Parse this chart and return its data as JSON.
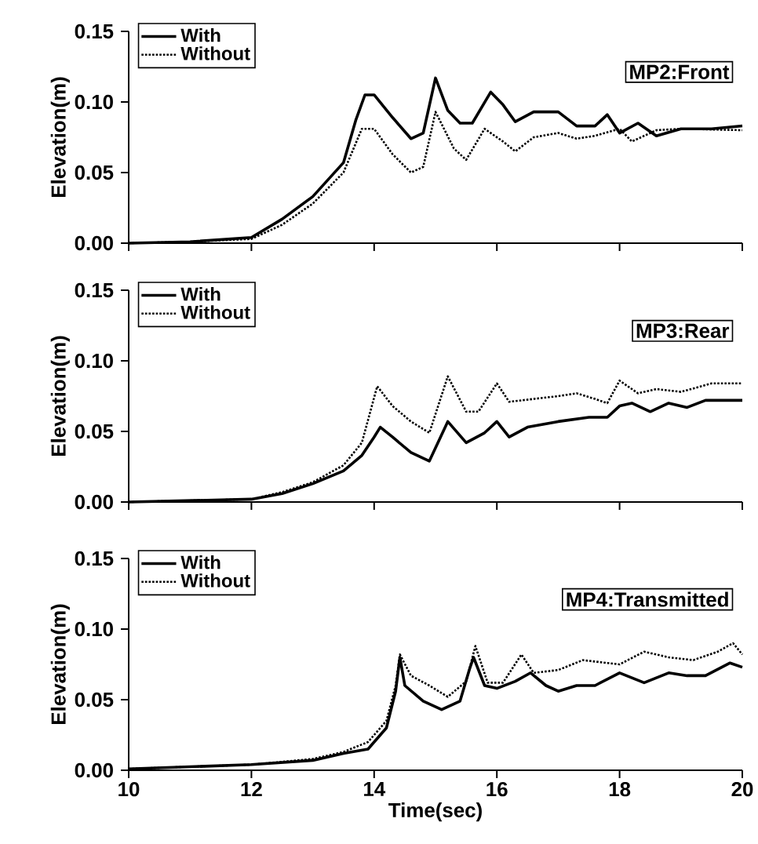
{
  "chart_data": [
    {
      "type": "line",
      "ylabel": "Elevation(m)",
      "annotations": [
        "MP2:Front"
      ],
      "legend": "top left",
      "tick_labels": "y",
      "xlim": [
        10,
        20
      ],
      "xticks": [
        10,
        12,
        14,
        16,
        18,
        20
      ],
      "ylim": [
        0,
        0.15
      ],
      "yticks": [
        {
          "value": 0,
          "label": "0.00"
        },
        {
          "value": 0.05,
          "label": "0.05"
        },
        {
          "value": 0.1,
          "label": "0.10"
        },
        {
          "value": 0.15,
          "label": "0.15"
        }
      ],
      "series": [
        {
          "name": "With",
          "color": "#000000",
          "line_style": "solid",
          "x": [
            10,
            11,
            12,
            12.5,
            13,
            13.5,
            13.7,
            13.85,
            14.0,
            14.3,
            14.6,
            14.8,
            15.0,
            15.2,
            15.4,
            15.6,
            15.9,
            16.1,
            16.3,
            16.6,
            17.0,
            17.3,
            17.6,
            17.8,
            18.0,
            18.3,
            18.6,
            19.0,
            19.5,
            20
          ],
          "values": [
            0,
            0.001,
            0.004,
            0.017,
            0.033,
            0.057,
            0.087,
            0.105,
            0.105,
            0.089,
            0.074,
            0.078,
            0.117,
            0.094,
            0.085,
            0.085,
            0.107,
            0.098,
            0.086,
            0.093,
            0.093,
            0.083,
            0.083,
            0.091,
            0.078,
            0.085,
            0.076,
            0.081,
            0.081,
            0.083
          ]
        },
        {
          "name": "Without",
          "color": "#000000",
          "line_style": "dotted",
          "x": [
            10,
            11,
            12,
            12.5,
            13,
            13.5,
            13.8,
            14.0,
            14.3,
            14.6,
            14.8,
            15.0,
            15.3,
            15.5,
            15.8,
            16.1,
            16.3,
            16.6,
            17.0,
            17.3,
            17.6,
            18.0,
            18.2,
            18.6,
            19.0,
            20
          ],
          "values": [
            0,
            0.001,
            0.003,
            0.013,
            0.028,
            0.05,
            0.081,
            0.081,
            0.063,
            0.05,
            0.054,
            0.093,
            0.067,
            0.059,
            0.081,
            0.072,
            0.065,
            0.075,
            0.078,
            0.074,
            0.076,
            0.081,
            0.072,
            0.08,
            0.081,
            0.08
          ]
        }
      ]
    },
    {
      "type": "line",
      "ylabel": "Elevation(m)",
      "annotations": [
        "MP3:Rear"
      ],
      "legend": "top left",
      "tick_labels": "y",
      "xlim": [
        10,
        20
      ],
      "xticks": [
        10,
        12,
        14,
        16,
        18,
        20
      ],
      "ylim": [
        0,
        0.15
      ],
      "yticks": [
        {
          "value": 0,
          "label": "0.00"
        },
        {
          "value": 0.05,
          "label": "0.05"
        },
        {
          "value": 0.1,
          "label": "0.10"
        },
        {
          "value": 0.15,
          "label": "0.15"
        }
      ],
      "series": [
        {
          "name": "With",
          "color": "#000000",
          "line_style": "solid",
          "x": [
            10,
            11,
            12,
            12.5,
            13,
            13.5,
            13.8,
            14.0,
            14.1,
            14.3,
            14.6,
            14.9,
            15.2,
            15.5,
            15.8,
            16.0,
            16.2,
            16.5,
            17.0,
            17.5,
            17.8,
            18.0,
            18.2,
            18.5,
            18.8,
            19.1,
            19.4,
            20
          ],
          "values": [
            0,
            0.001,
            0.002,
            0.006,
            0.013,
            0.022,
            0.033,
            0.046,
            0.053,
            0.046,
            0.035,
            0.029,
            0.057,
            0.042,
            0.049,
            0.057,
            0.046,
            0.053,
            0.057,
            0.06,
            0.06,
            0.068,
            0.07,
            0.064,
            0.07,
            0.067,
            0.072,
            0.072
          ]
        },
        {
          "name": "Without",
          "color": "#000000",
          "line_style": "dotted",
          "x": [
            10,
            11,
            12,
            12.5,
            13,
            13.5,
            13.8,
            14.05,
            14.3,
            14.6,
            14.9,
            15.2,
            15.5,
            15.7,
            16.0,
            16.2,
            16.6,
            17.0,
            17.3,
            17.6,
            17.8,
            18.0,
            18.3,
            18.6,
            19.0,
            19.5,
            20
          ],
          "values": [
            0,
            0.001,
            0.002,
            0.007,
            0.014,
            0.026,
            0.042,
            0.082,
            0.068,
            0.057,
            0.049,
            0.089,
            0.064,
            0.064,
            0.084,
            0.071,
            0.073,
            0.075,
            0.077,
            0.073,
            0.07,
            0.086,
            0.077,
            0.08,
            0.078,
            0.084,
            0.084
          ]
        }
      ]
    },
    {
      "type": "line",
      "xlabel": "Time(sec)",
      "ylabel": "Elevation(m)",
      "annotations": [
        "MP4:Transmitted"
      ],
      "legend": "top left",
      "xlim": [
        10,
        20
      ],
      "xticks": [
        10,
        12,
        14,
        16,
        18,
        20
      ],
      "ylim": [
        0,
        0.15
      ],
      "yticks": [
        {
          "value": 0,
          "label": "0.00"
        },
        {
          "value": 0.05,
          "label": "0.05"
        },
        {
          "value": 0.1,
          "label": "0.10"
        },
        {
          "value": 0.15,
          "label": "0.15"
        }
      ],
      "series": [
        {
          "name": "With",
          "color": "#000000",
          "line_style": "solid",
          "x": [
            10,
            12,
            13,
            13.5,
            13.9,
            14.2,
            14.35,
            14.42,
            14.5,
            14.8,
            15.1,
            15.4,
            15.55,
            15.62,
            15.8,
            16.0,
            16.3,
            16.55,
            16.8,
            17.0,
            17.3,
            17.6,
            18.0,
            18.4,
            18.8,
            19.1,
            19.4,
            19.8,
            20
          ],
          "values": [
            0.001,
            0.004,
            0.007,
            0.012,
            0.015,
            0.03,
            0.056,
            0.08,
            0.06,
            0.049,
            0.043,
            0.049,
            0.071,
            0.08,
            0.06,
            0.058,
            0.063,
            0.069,
            0.06,
            0.056,
            0.06,
            0.06,
            0.069,
            0.062,
            0.069,
            0.067,
            0.067,
            0.076,
            0.073
          ]
        },
        {
          "name": "Without",
          "color": "#000000",
          "line_style": "dotted",
          "x": [
            10,
            12,
            13,
            13.5,
            13.9,
            14.2,
            14.35,
            14.42,
            14.6,
            14.9,
            15.2,
            15.5,
            15.65,
            15.85,
            16.1,
            16.4,
            16.6,
            17.0,
            17.4,
            17.8,
            18.0,
            18.4,
            18.8,
            19.2,
            19.6,
            19.85,
            20
          ],
          "values": [
            0.001,
            0.004,
            0.008,
            0.013,
            0.02,
            0.035,
            0.06,
            0.082,
            0.067,
            0.06,
            0.052,
            0.063,
            0.088,
            0.062,
            0.062,
            0.082,
            0.069,
            0.071,
            0.078,
            0.076,
            0.075,
            0.084,
            0.08,
            0.078,
            0.084,
            0.09,
            0.082
          ]
        }
      ]
    }
  ]
}
